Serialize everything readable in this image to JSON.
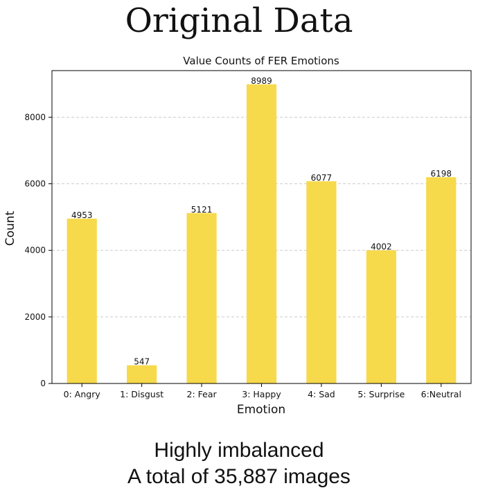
{
  "header": {
    "title": "Original Data"
  },
  "caption": {
    "line1": "Highly imbalanced",
    "line2": "A total of 35,887 images"
  },
  "colors": {
    "bar": "#F7D94C",
    "grid": "#cccccc",
    "axis": "#000000"
  },
  "chart_data": {
    "type": "bar",
    "title": "Value Counts of FER Emotions",
    "xlabel": "Emotion",
    "ylabel": "Count",
    "categories": [
      "0: Angry",
      "1: Disgust",
      "2: Fear",
      "3: Happy",
      "4: Sad",
      "5: Surprise",
      "6:Neutral"
    ],
    "values": [
      4953,
      547,
      5121,
      8989,
      6077,
      4002,
      6198
    ],
    "ylim": [
      0,
      9400
    ],
    "yticks": [
      0,
      2000,
      4000,
      6000,
      8000
    ],
    "grid": "y-dashed",
    "legend": "none"
  }
}
